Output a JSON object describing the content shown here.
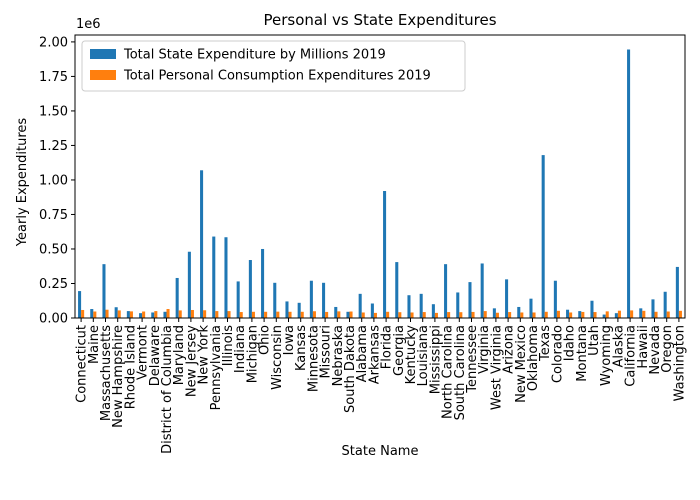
{
  "chart_data": {
    "type": "bar",
    "title": "Personal vs State Expenditures",
    "xlabel": "State Name",
    "ylabel": "Yearly Expenditures",
    "y_scale_label": "1e6",
    "ylim": [
      0,
      2050000
    ],
    "yticks": [
      0,
      250000,
      500000,
      750000,
      1000000,
      1250000,
      1500000,
      1750000,
      2000000
    ],
    "ytick_labels": [
      "0.00",
      "0.25",
      "0.50",
      "0.75",
      "1.00",
      "1.25",
      "1.50",
      "1.75",
      "2.00"
    ],
    "legend_position": "top-left",
    "colors": [
      "#1f77b4",
      "#ff7f0e"
    ],
    "categories": [
      "Connecticut",
      "Maine",
      "Massachusetts",
      "New Hampshire",
      "Rhode Island",
      "Vermont",
      "Delaware",
      "District of Columbia",
      "Maryland",
      "New Jersey",
      "New York",
      "Pennsylvania",
      "Illinois",
      "Indiana",
      "Michigan",
      "Ohio",
      "Wisconsin",
      "Iowa",
      "Kansas",
      "Minnesota",
      "Missouri",
      "Nebraska",
      "South Dakota",
      "Alabama",
      "Arkansas",
      "Florida",
      "Georgia",
      "Kentucky",
      "Louisiana",
      "Mississippi",
      "North Carolina",
      "South Carolina",
      "Tennessee",
      "Virginia",
      "West Virginia",
      "Arizona",
      "New Mexico",
      "Oklahoma",
      "Texas",
      "Colorado",
      "Idaho",
      "Montana",
      "Utah",
      "Wyoming",
      "Alaska",
      "California",
      "Hawaii",
      "Nevada",
      "Oregon",
      "Washington"
    ],
    "series": [
      {
        "name": "Total State Expenditure by Millions 2019",
        "values": [
          195000,
          65000,
          390000,
          78000,
          50000,
          35000,
          40000,
          45000,
          290000,
          480000,
          1070000,
          590000,
          585000,
          265000,
          420000,
          500000,
          255000,
          120000,
          110000,
          270000,
          255000,
          80000,
          45000,
          175000,
          105000,
          920000,
          405000,
          165000,
          175000,
          100000,
          390000,
          185000,
          260000,
          395000,
          70000,
          280000,
          80000,
          140000,
          1180000,
          270000,
          60000,
          50000,
          125000,
          25000,
          35000,
          1945000,
          70000,
          135000,
          190000,
          370000
        ]
      },
      {
        "name": "Total Personal Consumption Expenditures 2019",
        "values": [
          58000,
          47000,
          60000,
          55000,
          48000,
          47000,
          50000,
          65000,
          55000,
          58000,
          56000,
          50000,
          50000,
          43000,
          45000,
          45000,
          46000,
          45000,
          45000,
          49000,
          44000,
          48000,
          47000,
          40000,
          37000,
          45000,
          42000,
          40000,
          43000,
          37000,
          43000,
          42000,
          44000,
          50000,
          38000,
          43000,
          40000,
          40000,
          45000,
          52000,
          40000,
          44000,
          43000,
          48000,
          53000,
          55000,
          52000,
          45000,
          47000,
          52000
        ]
      }
    ]
  }
}
